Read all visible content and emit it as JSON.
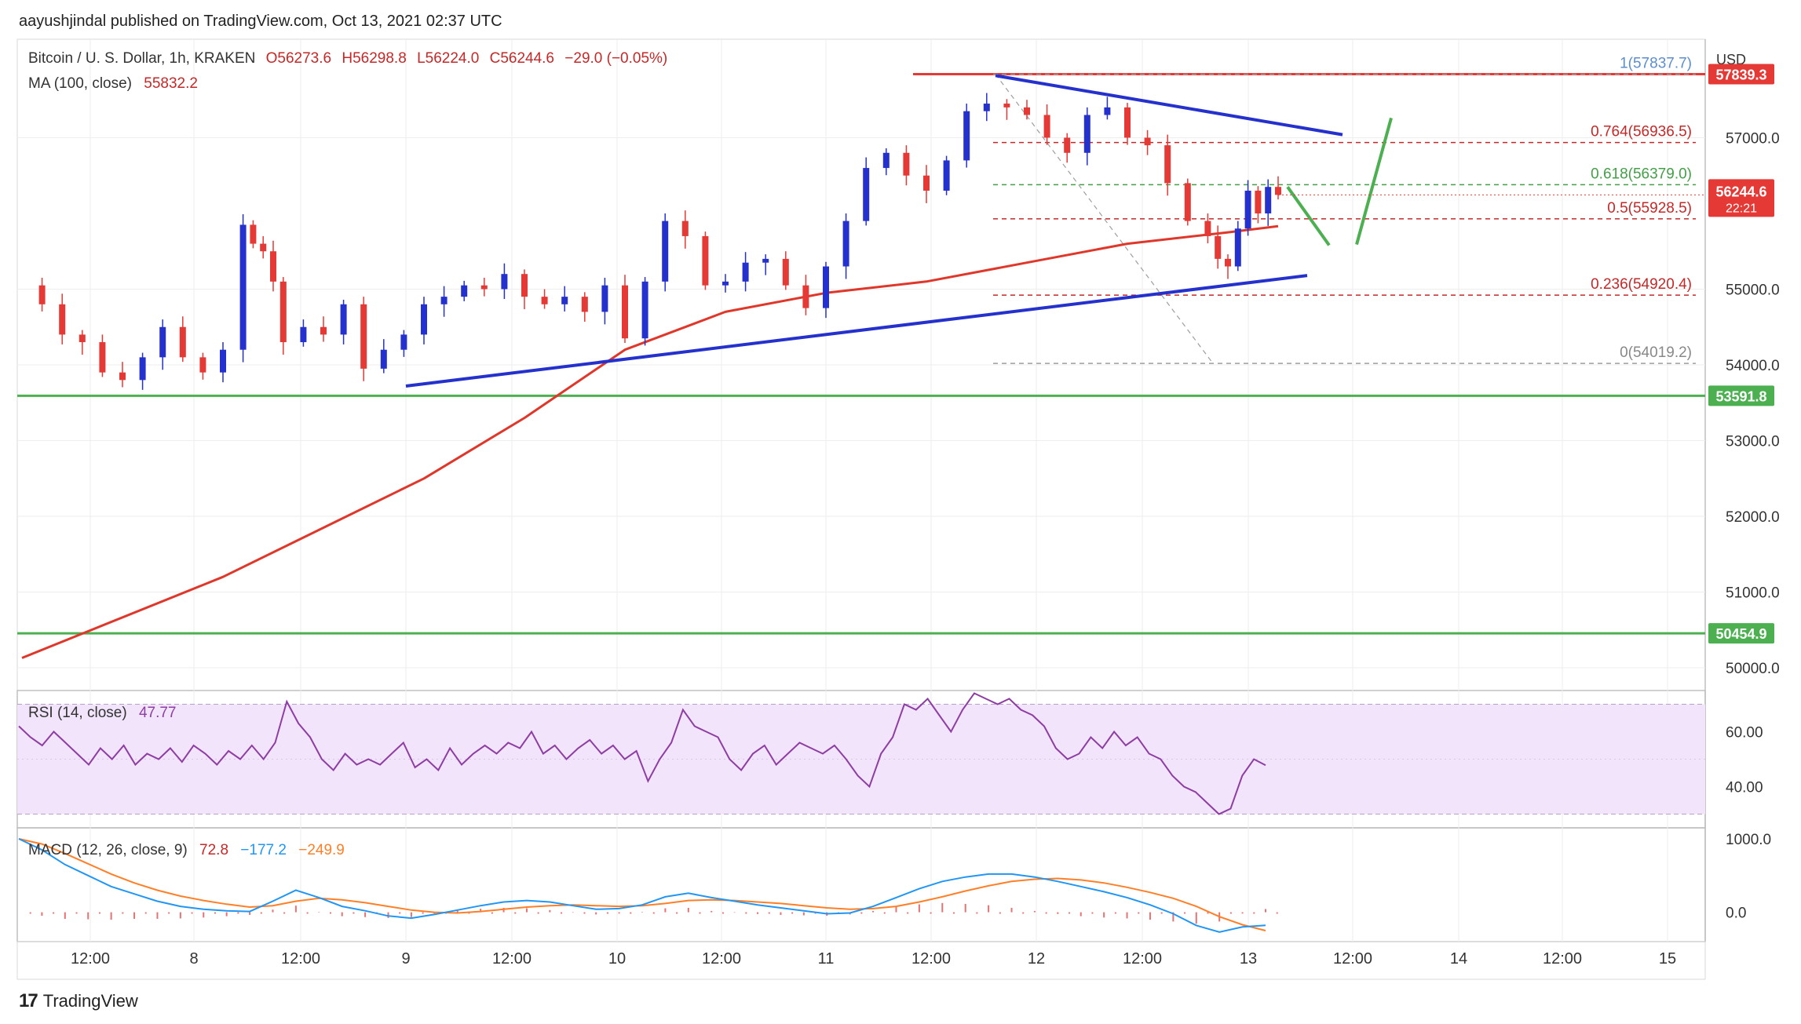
{
  "header": {
    "published": "aayushjindal published on TradingView.com, Oct 13, 2021 02:37 UTC"
  },
  "legend": {
    "symbol": "Bitcoin / U. S. Dollar, 1h, KRAKEN",
    "open": "O56273.6",
    "high": "H56298.8",
    "low": "L56224.0",
    "close": "C56244.6",
    "change": "−29.0 (−0.05%)",
    "ma_label": "MA (100, close)",
    "ma_value": "55832.2",
    "rsi_label": "RSI (14, close)",
    "rsi_value": "47.77",
    "macd_label": "MACD (12, 26, close, 9)",
    "macd_hist": "72.8",
    "macd_line": "−177.2",
    "macd_signal": "−249.9"
  },
  "footer": {
    "brand": "TradingView"
  },
  "colors": {
    "up": "#2531cc",
    "down": "#e53935",
    "ma": "#e0372b",
    "support_green": "#4caf50",
    "trendline_blue": "#2531cc",
    "fib_red": "#c62828",
    "fib_green": "#43a047",
    "rsi_line": "#8e3ea3",
    "rsi_band": "#f1e4fb",
    "macd_line": "#2196f3",
    "macd_signal": "#ff7f27",
    "macd_hist": "#e57373",
    "grid": "#eeeeee",
    "axis_text": "#333333"
  },
  "chart_data": [
    {
      "type": "candlestick",
      "title": "Bitcoin / U. S. Dollar, 1h, KRAKEN",
      "unit": "USD",
      "ylim": [
        49700,
        58300
      ],
      "y_ticks": [
        "50000.0",
        "51000.0",
        "52000.0",
        "53000.0",
        "54000.0",
        "55000.0",
        "57000.0"
      ],
      "x_ticks": [
        "12:00",
        "8",
        "12:00",
        "9",
        "12:00",
        "10",
        "12:00",
        "11",
        "12:00",
        "12",
        "12:00",
        "13",
        "12:00",
        "14",
        "12:00",
        "15"
      ],
      "ohlc_close_points": [
        {
          "t": 0,
          "c": 55050
        },
        {
          "t": 4,
          "c": 54800
        },
        {
          "t": 8,
          "c": 54400
        },
        {
          "t": 12,
          "c": 54300
        },
        {
          "t": 16,
          "c": 53900
        },
        {
          "t": 20,
          "c": 53800
        },
        {
          "t": 24,
          "c": 54100
        },
        {
          "t": 28,
          "c": 54500
        },
        {
          "t": 32,
          "c": 54100
        },
        {
          "t": 36,
          "c": 53900
        },
        {
          "t": 40,
          "c": 54200
        },
        {
          "t": 44,
          "c": 55850
        },
        {
          "t": 46,
          "c": 55600
        },
        {
          "t": 48,
          "c": 55500
        },
        {
          "t": 50,
          "c": 55100
        },
        {
          "t": 52,
          "c": 54300
        },
        {
          "t": 56,
          "c": 54500
        },
        {
          "t": 60,
          "c": 54400
        },
        {
          "t": 64,
          "c": 54800
        },
        {
          "t": 68,
          "c": 53950
        },
        {
          "t": 72,
          "c": 54200
        },
        {
          "t": 76,
          "c": 54400
        },
        {
          "t": 80,
          "c": 54800
        },
        {
          "t": 84,
          "c": 54900
        },
        {
          "t": 88,
          "c": 55050
        },
        {
          "t": 92,
          "c": 55000
        },
        {
          "t": 96,
          "c": 55200
        },
        {
          "t": 100,
          "c": 54900
        },
        {
          "t": 104,
          "c": 54800
        },
        {
          "t": 108,
          "c": 54900
        },
        {
          "t": 112,
          "c": 54700
        },
        {
          "t": 116,
          "c": 55050
        },
        {
          "t": 120,
          "c": 54350
        },
        {
          "t": 124,
          "c": 55100
        },
        {
          "t": 128,
          "c": 55900
        },
        {
          "t": 132,
          "c": 55700
        },
        {
          "t": 136,
          "c": 55050
        },
        {
          "t": 140,
          "c": 55100
        },
        {
          "t": 144,
          "c": 55350
        },
        {
          "t": 148,
          "c": 55400
        },
        {
          "t": 152,
          "c": 55050
        },
        {
          "t": 156,
          "c": 54750
        },
        {
          "t": 160,
          "c": 55300
        },
        {
          "t": 164,
          "c": 55900
        },
        {
          "t": 168,
          "c": 56600
        },
        {
          "t": 172,
          "c": 56800
        },
        {
          "t": 176,
          "c": 56500
        },
        {
          "t": 180,
          "c": 56300
        },
        {
          "t": 184,
          "c": 56700
        },
        {
          "t": 188,
          "c": 57350
        },
        {
          "t": 192,
          "c": 57450
        },
        {
          "t": 196,
          "c": 57400
        },
        {
          "t": 200,
          "c": 57300
        },
        {
          "t": 204,
          "c": 57000
        },
        {
          "t": 208,
          "c": 56800
        },
        {
          "t": 212,
          "c": 57300
        },
        {
          "t": 216,
          "c": 57400
        },
        {
          "t": 220,
          "c": 57000
        },
        {
          "t": 224,
          "c": 56900
        },
        {
          "t": 228,
          "c": 56400
        },
        {
          "t": 232,
          "c": 55900
        },
        {
          "t": 236,
          "c": 55700
        },
        {
          "t": 238,
          "c": 55400
        },
        {
          "t": 240,
          "c": 55300
        },
        {
          "t": 242,
          "c": 55800
        },
        {
          "t": 244,
          "c": 56300
        },
        {
          "t": 246,
          "c": 56000
        },
        {
          "t": 248,
          "c": 56350
        },
        {
          "t": 250,
          "c": 56244.6
        }
      ],
      "ma100": [
        {
          "t": 0,
          "v": 50130
        },
        {
          "t": 40,
          "v": 51200
        },
        {
          "t": 80,
          "v": 52500
        },
        {
          "t": 100,
          "v": 53300
        },
        {
          "t": 120,
          "v": 54200
        },
        {
          "t": 140,
          "v": 54700
        },
        {
          "t": 160,
          "v": 54950
        },
        {
          "t": 180,
          "v": 55100
        },
        {
          "t": 200,
          "v": 55350
        },
        {
          "t": 220,
          "v": 55600
        },
        {
          "t": 240,
          "v": 55750
        },
        {
          "t": 250,
          "v": 55832.2
        }
      ],
      "levels": [
        {
          "label": "57839.3",
          "value": 57839.3,
          "kind": "resistance"
        },
        {
          "label": "53591.8",
          "value": 53591.8,
          "kind": "support"
        },
        {
          "label": "50454.9",
          "value": 50454.9,
          "kind": "support"
        }
      ],
      "fibonacci": [
        {
          "label": "1(57837.7)",
          "value": 57837.7
        },
        {
          "label": "0.764(56936.5)",
          "value": 56936.5
        },
        {
          "label": "0.618(56379.0)",
          "value": 56379.0
        },
        {
          "label": "0.5(55928.5)",
          "value": 55928.5
        },
        {
          "label": "0.236(54920.4)",
          "value": 54920.4
        },
        {
          "label": "0(54019.2)",
          "value": 54019.2
        }
      ],
      "last_price": {
        "value": 56244.6,
        "label": "56244.6",
        "countdown": "22:21"
      }
    },
    {
      "type": "line",
      "title": "RSI (14, close)",
      "ylim": [
        25,
        75
      ],
      "y_ticks": [
        "60.00",
        "40.00"
      ],
      "series": [
        {
          "name": "RSI",
          "values": [
            62,
            58,
            55,
            60,
            56,
            52,
            48,
            54,
            50,
            55,
            48,
            52,
            50,
            54,
            49,
            55,
            52,
            48,
            53,
            50,
            55,
            50,
            56,
            71,
            63,
            58,
            50,
            46,
            52,
            48,
            50,
            48,
            52,
            56,
            47,
            50,
            46,
            54,
            48,
            52,
            55,
            52,
            56,
            54,
            60,
            52,
            55,
            50,
            54,
            57,
            52,
            55,
            50,
            53,
            42,
            50,
            56,
            68,
            62,
            60,
            58,
            50,
            46,
            52,
            55,
            48,
            52,
            56,
            54,
            52,
            55,
            50,
            44,
            40,
            52,
            58,
            70,
            68,
            72,
            66,
            60,
            68,
            74,
            72,
            70,
            72,
            68,
            66,
            62,
            54,
            50,
            52,
            58,
            54,
            60,
            55,
            58,
            52,
            50,
            44,
            40,
            38,
            34,
            30,
            32,
            44,
            50,
            47.77
          ]
        }
      ]
    },
    {
      "type": "line",
      "title": "MACD (12, 26, close, 9)",
      "ylim": [
        -400,
        1150
      ],
      "y_ticks": [
        "1000.0",
        "0.0"
      ],
      "series": [
        {
          "name": "MACD",
          "values": [
            1000,
            850,
            650,
            500,
            350,
            250,
            150,
            80,
            40,
            20,
            10,
            150,
            300,
            200,
            80,
            20,
            -50,
            -80,
            -30,
            30,
            90,
            140,
            160,
            140,
            90,
            40,
            50,
            100,
            210,
            260,
            200,
            150,
            100,
            60,
            20,
            -20,
            -10,
            80,
            200,
            320,
            420,
            480,
            520,
            520,
            480,
            420,
            350,
            280,
            200,
            100,
            -20,
            -180,
            -270,
            -200,
            -177.2
          ]
        },
        {
          "name": "Signal",
          "values": [
            1000,
            930,
            800,
            660,
            520,
            400,
            300,
            220,
            160,
            110,
            70,
            90,
            150,
            190,
            170,
            130,
            80,
            30,
            0,
            -10,
            10,
            40,
            70,
            90,
            100,
            90,
            80,
            90,
            120,
            160,
            170,
            160,
            140,
            120,
            90,
            60,
            40,
            50,
            80,
            140,
            210,
            290,
            360,
            420,
            450,
            460,
            440,
            400,
            340,
            270,
            190,
            80,
            -60,
            -170,
            -249.9
          ]
        }
      ]
    }
  ]
}
